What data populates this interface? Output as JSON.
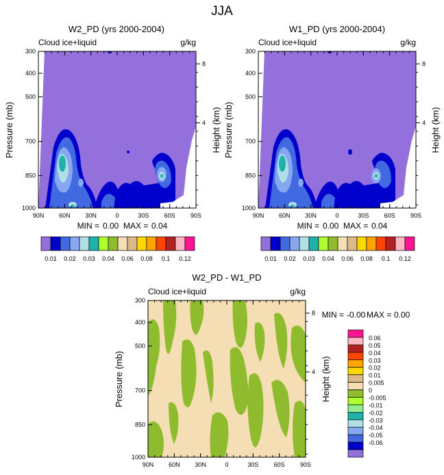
{
  "figure_title": "JJA",
  "chart_data": [
    {
      "id": "p1",
      "type": "contour",
      "title": "W2_PD (yrs 2000-2004)",
      "left_label": "Cloud ice+liquid",
      "right_label": "g/kg",
      "ylabel": "Pressure (mb)",
      "y2label": "Height (km)",
      "x_ticks": [
        "90N",
        "60N",
        "30N",
        "0",
        "30S",
        "60S",
        "90S"
      ],
      "y_ticks": [
        "300",
        "400",
        "500",
        "700",
        "850",
        "1000"
      ],
      "y2_ticks": [
        "8",
        "4"
      ],
      "stats": {
        "min_label": "MIN =",
        "min": "0.00",
        "max_label": "MAX =",
        "max": "0.04"
      },
      "colorbar": {
        "orientation": "horizontal",
        "labels": [
          "0.01",
          "0.02",
          "0.03",
          "0.04",
          "0.06",
          "0.08",
          "0.1",
          "0.12"
        ],
        "colors": [
          "#9370db",
          "#0000cd",
          "#4169e1",
          "#87a7f0",
          "#b0e0e6",
          "#20b2aa",
          "#adff2f",
          "#8fbc2f",
          "#f5deb3",
          "#deb887",
          "#ffd700",
          "#ffa500",
          "#ff4500",
          "#b22222",
          "#ffb6c1",
          "#ff1493"
        ]
      }
    },
    {
      "id": "p2",
      "type": "contour",
      "title": "W1_PD (yrs 2000-2004)",
      "left_label": "Cloud ice+liquid",
      "right_label": "g/kg",
      "ylabel": "Pressure (mb)",
      "y2label": "Height (km)",
      "x_ticks": [
        "90N",
        "60N",
        "30N",
        "0",
        "30S",
        "60S",
        "90S"
      ],
      "y_ticks": [
        "300",
        "400",
        "500",
        "700",
        "850",
        "1000"
      ],
      "y2_ticks": [
        "8",
        "4"
      ],
      "stats": {
        "min_label": "MIN =",
        "min": "0.00",
        "max_label": "MAX =",
        "max": "0.04"
      },
      "colorbar": {
        "orientation": "horizontal",
        "labels": [
          "0.01",
          "0.02",
          "0.03",
          "0.04",
          "0.06",
          "0.08",
          "0.1",
          "0.12"
        ],
        "colors": [
          "#9370db",
          "#0000cd",
          "#4169e1",
          "#87a7f0",
          "#b0e0e6",
          "#20b2aa",
          "#adff2f",
          "#8fbc2f",
          "#f5deb3",
          "#deb887",
          "#ffd700",
          "#ffa500",
          "#ff4500",
          "#b22222",
          "#ffb6c1",
          "#ff1493"
        ]
      }
    },
    {
      "id": "p3",
      "type": "contour",
      "title": "W2_PD - W1_PD",
      "left_label": "Cloud ice+liquid",
      "right_label": "g/kg",
      "ylabel": "Pressure (mb)",
      "y2label": "Height (km)",
      "x_ticks": [
        "90N",
        "60N",
        "30N",
        "0",
        "30S",
        "60S",
        "90S"
      ],
      "y_ticks": [
        "300",
        "400",
        "500",
        "700",
        "850",
        "1000"
      ],
      "y2_ticks": [
        "8",
        "4"
      ],
      "stats": {
        "min_label": "MIN =",
        "min": "-0.00",
        "max_label": "MAX =",
        "max": "0.00"
      },
      "colorbar": {
        "orientation": "vertical",
        "labels": [
          "0.06",
          "0.05",
          "0.04",
          "0.03",
          "0.02",
          "0.01",
          "0.005",
          "0",
          "-0.005",
          "-0.01",
          "-0.02",
          "-0.03",
          "-0.04",
          "-0.05",
          "-0.06"
        ],
        "colors": [
          "#ff1493",
          "#ffb6c1",
          "#b22222",
          "#ff4500",
          "#ffa500",
          "#ffd700",
          "#deb887",
          "#f5deb3",
          "#8fbc2f",
          "#adff2f",
          "#90ee90",
          "#20b2aa",
          "#b0e0e6",
          "#87a7f0",
          "#4169e1",
          "#0000cd",
          "#9370db"
        ]
      }
    }
  ]
}
